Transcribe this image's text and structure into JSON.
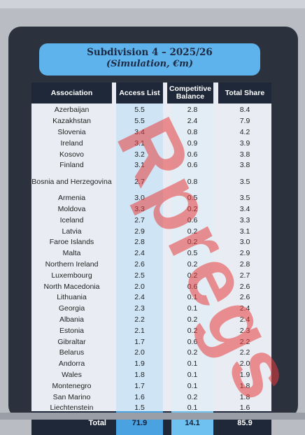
{
  "title": {
    "line1": "Subdivision 4 – 2025/26",
    "line2": "(Simulation, €m)"
  },
  "headers": {
    "association": "Association",
    "access": "Access List",
    "competitive": "Competitive Balance",
    "share": "Total Share"
  },
  "rows": [
    {
      "association": "Azerbaijan",
      "access": "5.5",
      "competitive": "2.8",
      "share": "8.4"
    },
    {
      "association": "Kazakhstan",
      "access": "5.5",
      "competitive": "2.4",
      "share": "7.9"
    },
    {
      "association": "Slovenia",
      "access": "3.4",
      "competitive": "0.8",
      "share": "4.2"
    },
    {
      "association": "Ireland",
      "access": "3.1",
      "competitive": "0.9",
      "share": "3.9"
    },
    {
      "association": "Kosovo",
      "access": "3.2",
      "competitive": "0.6",
      "share": "3.8"
    },
    {
      "association": "Finland",
      "access": "3.1",
      "competitive": "0.6",
      "share": "3.8"
    },
    {
      "association": "Bosnia and Herzegovina",
      "access": "2.7",
      "competitive": "0.8",
      "share": "3.5"
    },
    {
      "association": "Armenia",
      "access": "3.0",
      "competitive": "0.5",
      "share": "3.5"
    },
    {
      "association": "Moldova",
      "access": "3.3",
      "competitive": "0.2",
      "share": "3.4"
    },
    {
      "association": "Iceland",
      "access": "2.7",
      "competitive": "0.6",
      "share": "3.3"
    },
    {
      "association": "Latvia",
      "access": "2.9",
      "competitive": "0.2",
      "share": "3.1"
    },
    {
      "association": "Faroe Islands",
      "access": "2.8",
      "competitive": "0.2",
      "share": "3.0"
    },
    {
      "association": "Malta",
      "access": "2.4",
      "competitive": "0.5",
      "share": "2.9"
    },
    {
      "association": "Northern Ireland",
      "access": "2.6",
      "competitive": "0.2",
      "share": "2.8"
    },
    {
      "association": "Luxembourg",
      "access": "2.5",
      "competitive": "0.2",
      "share": "2.7"
    },
    {
      "association": "North Macedonia",
      "access": "2.0",
      "competitive": "0.6",
      "share": "2.6"
    },
    {
      "association": "Lithuania",
      "access": "2.4",
      "competitive": "0.1",
      "share": "2.6"
    },
    {
      "association": "Georgia",
      "access": "2.3",
      "competitive": "0.1",
      "share": "2.4"
    },
    {
      "association": "Albania",
      "access": "2.2",
      "competitive": "0.2",
      "share": "2.4"
    },
    {
      "association": "Estonia",
      "access": "2.1",
      "competitive": "0.2",
      "share": "2.3"
    },
    {
      "association": "Gibraltar",
      "access": "1.7",
      "competitive": "0.6",
      "share": "2.2"
    },
    {
      "association": "Belarus",
      "access": "2.0",
      "competitive": "0.2",
      "share": "2.2"
    },
    {
      "association": "Andorra",
      "access": "1.9",
      "competitive": "0.1",
      "share": "2.0"
    },
    {
      "association": "Wales",
      "access": "1.8",
      "competitive": "0.1",
      "share": "1.9"
    },
    {
      "association": "Montenegro",
      "access": "1.7",
      "competitive": "0.1",
      "share": "1.8"
    },
    {
      "association": "San Marino",
      "access": "1.6",
      "competitive": "0.2",
      "share": "1.8"
    },
    {
      "association": "Liechtenstein",
      "access": "1.5",
      "competitive": "0.1",
      "share": "1.6"
    }
  ],
  "total": {
    "label": "Total",
    "access": "71.9",
    "competitive": "14.1",
    "share": "85.9"
  },
  "watermark": "Rpregs",
  "colors": {
    "card": "#2b323e",
    "title_pill": "#5fb3ec",
    "header_bg": "#1f2838",
    "total_access": "#4aa3e0",
    "total_competitive": "#6fc1f0",
    "watermark": "#e83c3c"
  }
}
